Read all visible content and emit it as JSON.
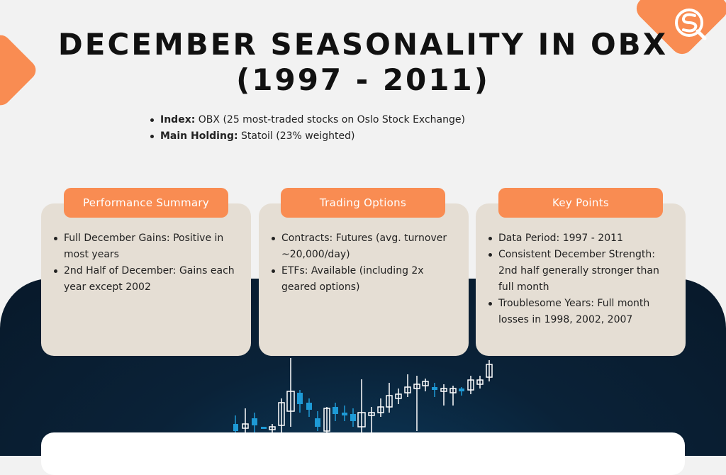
{
  "title": {
    "line1": "DECEMBER SEASONALITY IN OBX",
    "line2": "(1997 - 2011)"
  },
  "facts": [
    {
      "label": "Index:",
      "text": " OBX (25 most-traded stocks on Oslo Stock Exchange)"
    },
    {
      "label": "Main Holding:",
      "text": " Statoil (23% weighted)"
    }
  ],
  "cards": [
    {
      "header": "Performance Summary",
      "items": [
        "Full December Gains: Positive in most years",
        "2nd Half of December: Gains each year except 2002"
      ]
    },
    {
      "header": "Trading Options",
      "items": [
        "Contracts: Futures (avg. turnover ~20,000/day)",
        "ETFs: Available (including 2x geared options)"
      ]
    },
    {
      "header": "Key Points",
      "items": [
        "Data Period: 1997 - 2011",
        "Consistent December Strength: 2nd half generally stronger than full month",
        "Troublesome Years: Full month losses in 1998, 2002, 2007"
      ]
    }
  ],
  "colors": {
    "accent": "#f98c52",
    "card_bg": "#e5ded4",
    "dark_band": "#0a2238",
    "candle_up": "#ffffff",
    "candle_blue": "#1e9ad6"
  },
  "icons": {
    "logo": "sq-magnifier-logo-icon",
    "candles": "candlestick-chart-icon"
  }
}
